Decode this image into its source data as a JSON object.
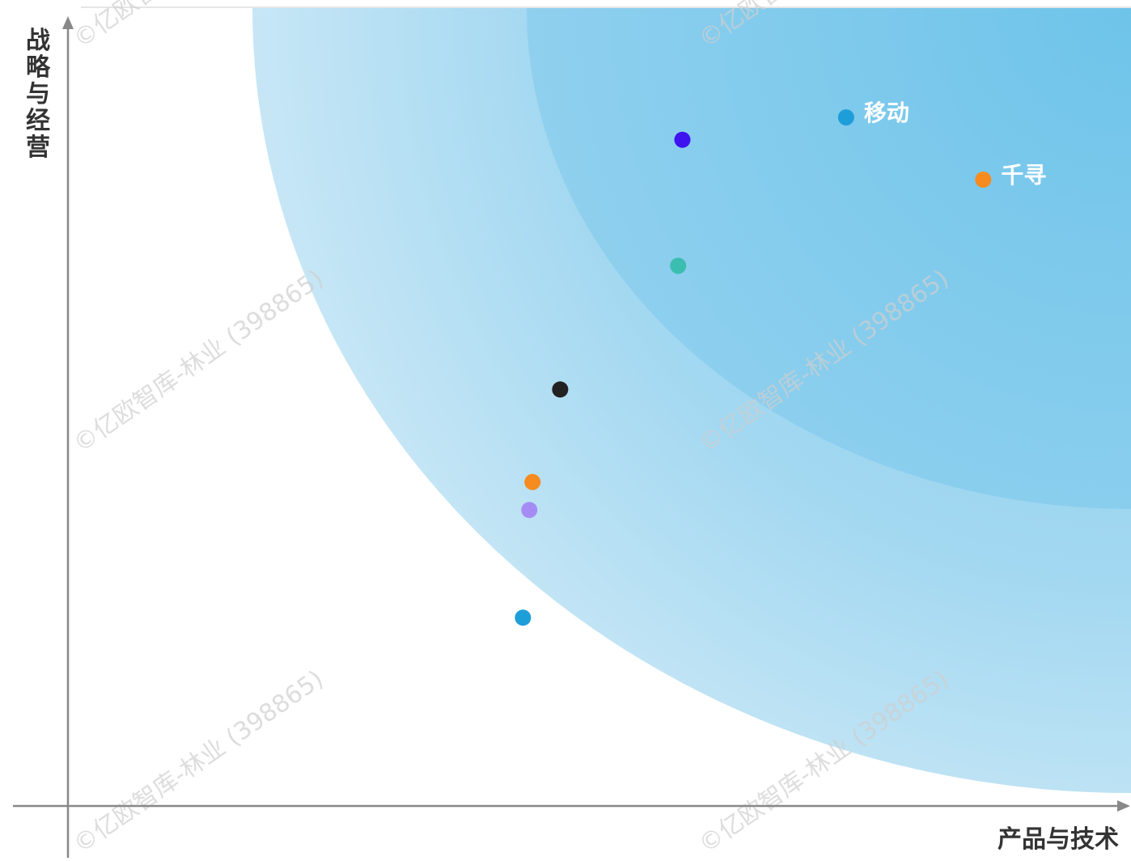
{
  "chart_data": {
    "type": "scatter",
    "xlabel": "产品与技术",
    "ylabel": "战略与经营",
    "xlim": [
      0,
      100
    ],
    "ylim": [
      0,
      100
    ],
    "grid": false,
    "points": [
      {
        "label": "移动",
        "x": 73.2,
        "y": 86.3,
        "color": "#1E9ED8"
      },
      {
        "label": "千寻",
        "x": 86.1,
        "y": 78.5,
        "color": "#F68B1F"
      },
      {
        "label": "",
        "x": 57.8,
        "y": 83.5,
        "color": "#3F12F0"
      },
      {
        "label": "",
        "x": 57.4,
        "y": 67.7,
        "color": "#3BBDB0"
      },
      {
        "label": "",
        "x": 46.3,
        "y": 52.2,
        "color": "#222222"
      },
      {
        "label": "",
        "x": 43.7,
        "y": 40.6,
        "color": "#F68B1F"
      },
      {
        "label": "",
        "x": 43.4,
        "y": 37.1,
        "color": "#A58CF5"
      },
      {
        "label": "",
        "x": 42.8,
        "y": 23.6,
        "color": "#1E9ED8"
      }
    ]
  },
  "watermark": "©亿欧智库-林业 (398865)"
}
